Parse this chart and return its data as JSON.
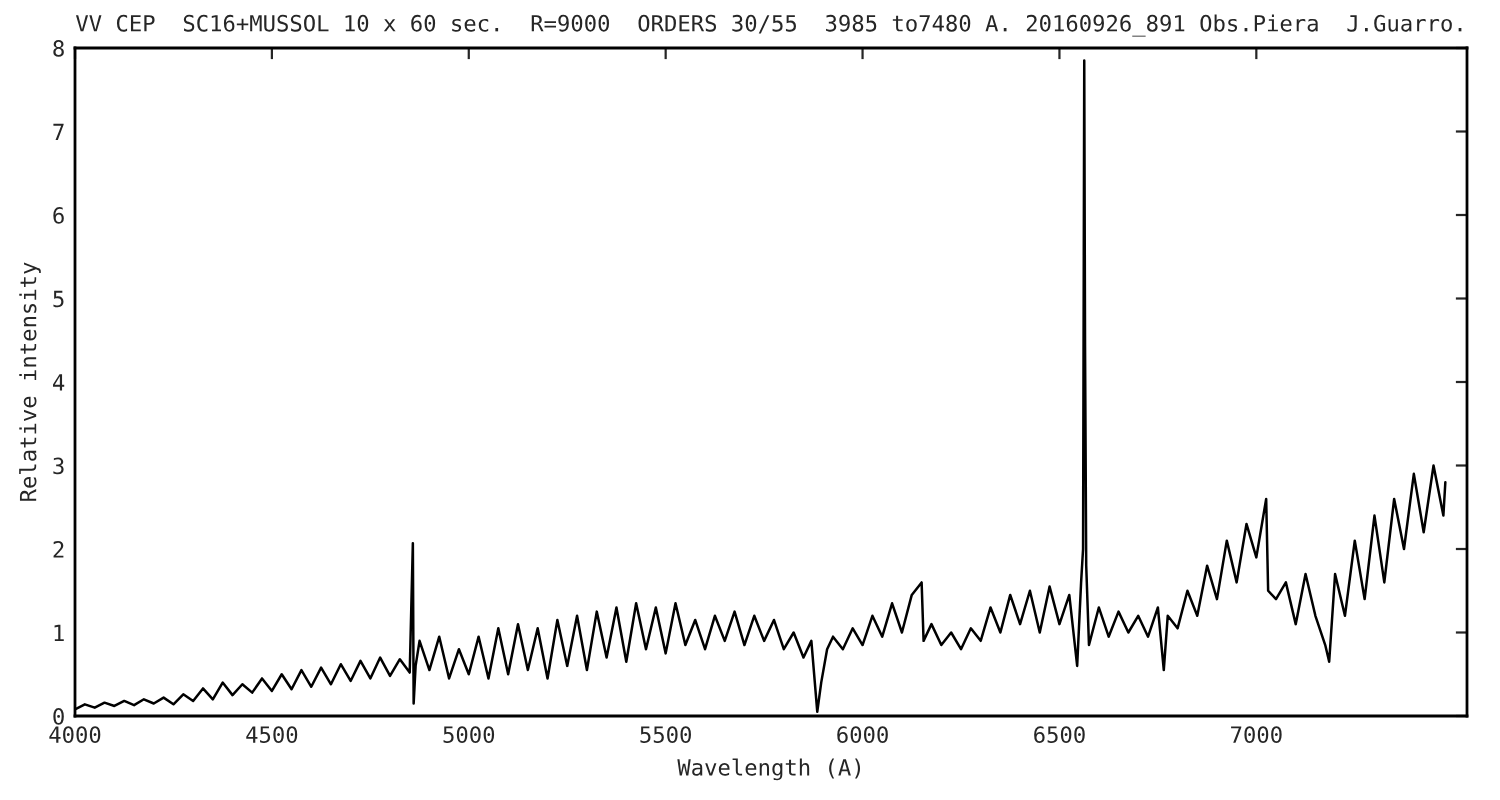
{
  "chart_data": {
    "type": "line",
    "title": "VV CEP  SC16+MUSSOL 10 x 60 sec.  R=9000  ORDERS 30/55  3985 to7480 A. 20160926_891 Obs.Piera  J.Guarro.",
    "xlabel": "Wavelength (A)",
    "ylabel": "Relative intensity",
    "x": [
      4000,
      4025,
      4050,
      4075,
      4100,
      4125,
      4150,
      4175,
      4200,
      4225,
      4250,
      4275,
      4300,
      4325,
      4350,
      4375,
      4400,
      4425,
      4450,
      4475,
      4500,
      4525,
      4550,
      4575,
      4600,
      4625,
      4650,
      4675,
      4700,
      4725,
      4750,
      4775,
      4800,
      4825,
      4850,
      4858,
      4860,
      4865,
      4875,
      4900,
      4925,
      4950,
      4975,
      5000,
      5025,
      5050,
      5075,
      5100,
      5125,
      5150,
      5175,
      5200,
      5225,
      5250,
      5275,
      5300,
      5325,
      5350,
      5375,
      5400,
      5425,
      5450,
      5475,
      5500,
      5525,
      5550,
      5575,
      5600,
      5625,
      5650,
      5675,
      5700,
      5725,
      5750,
      5775,
      5800,
      5825,
      5850,
      5870,
      5885,
      5895,
      5910,
      5925,
      5950,
      5975,
      6000,
      6025,
      6050,
      6075,
      6100,
      6125,
      6150,
      6155,
      6175,
      6200,
      6225,
      6250,
      6275,
      6300,
      6325,
      6350,
      6375,
      6400,
      6425,
      6450,
      6475,
      6500,
      6525,
      6545,
      6555,
      6560,
      6563,
      6565,
      6568,
      6575,
      6600,
      6625,
      6650,
      6675,
      6700,
      6725,
      6750,
      6765,
      6775,
      6800,
      6825,
      6850,
      6875,
      6900,
      6925,
      6950,
      6975,
      7000,
      7025,
      7030,
      7050,
      7075,
      7100,
      7125,
      7150,
      7175,
      7185,
      7200,
      7225,
      7250,
      7275,
      7300,
      7325,
      7350,
      7375,
      7400,
      7425,
      7450,
      7475,
      7480
    ],
    "series": [
      {
        "color": "#000000",
        "values": [
          0.08,
          0.14,
          0.1,
          0.16,
          0.12,
          0.18,
          0.13,
          0.2,
          0.15,
          0.22,
          0.14,
          0.26,
          0.18,
          0.33,
          0.2,
          0.4,
          0.25,
          0.38,
          0.28,
          0.45,
          0.3,
          0.5,
          0.32,
          0.55,
          0.35,
          0.58,
          0.38,
          0.62,
          0.42,
          0.66,
          0.45,
          0.7,
          0.48,
          0.68,
          0.52,
          2.07,
          0.15,
          0.6,
          0.9,
          0.55,
          0.95,
          0.45,
          0.8,
          0.5,
          0.95,
          0.45,
          1.05,
          0.5,
          1.1,
          0.55,
          1.05,
          0.45,
          1.15,
          0.6,
          1.2,
          0.55,
          1.25,
          0.7,
          1.3,
          0.65,
          1.35,
          0.8,
          1.3,
          0.75,
          1.35,
          0.85,
          1.15,
          0.8,
          1.2,
          0.9,
          1.25,
          0.85,
          1.2,
          0.9,
          1.15,
          0.8,
          1.0,
          0.7,
          0.9,
          0.05,
          0.4,
          0.8,
          0.95,
          0.8,
          1.05,
          0.85,
          1.2,
          0.95,
          1.35,
          1.0,
          1.45,
          1.6,
          0.9,
          1.1,
          0.85,
          1.0,
          0.8,
          1.05,
          0.9,
          1.3,
          1.0,
          1.45,
          1.1,
          1.5,
          1.0,
          1.55,
          1.1,
          1.45,
          0.6,
          1.6,
          2.0,
          7.85,
          4.45,
          1.8,
          0.85,
          1.3,
          0.95,
          1.25,
          1.0,
          1.2,
          0.95,
          1.3,
          0.55,
          1.2,
          1.05,
          1.5,
          1.2,
          1.8,
          1.4,
          2.1,
          1.6,
          2.3,
          1.9,
          2.6,
          1.5,
          1.4,
          1.6,
          1.1,
          1.7,
          1.2,
          0.85,
          0.65,
          1.7,
          1.2,
          2.1,
          1.4,
          2.4,
          1.6,
          2.6,
          2.0,
          2.9,
          2.2,
          3.0,
          2.4,
          2.8
        ]
      }
    ],
    "xlim": [
      4000,
      7535
    ],
    "ylim": [
      0,
      8
    ],
    "xticks": [
      4000,
      4500,
      5000,
      5500,
      6000,
      6500,
      7000
    ],
    "yticks": [
      0,
      1,
      2,
      3,
      4,
      5,
      6,
      7,
      8
    ],
    "grid": false,
    "marker": "none",
    "line_style": "solid"
  }
}
